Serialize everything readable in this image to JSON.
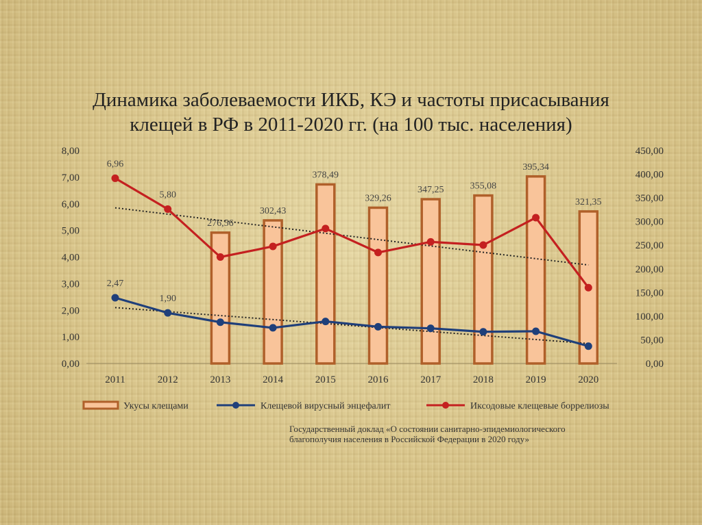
{
  "title_lines": [
    "Динамика заболеваемости ИКБ, КЭ и частоты  присасывания",
    "клещей   в РФ в 2011-2020 гг. (на 100 тыс. населения)"
  ],
  "source_note": [
    "Государственный доклад «О состоянии санитарно-эпидемиологического",
    "благополучия населения   в Российской Федерации в 2020 году»"
  ],
  "colors": {
    "bar_fill": "#f9c49a",
    "bar_stroke": "#b0602a",
    "ke_line": "#1f3f7a",
    "ikb_line": "#c42020",
    "trend": "#222222"
  },
  "chart_data": {
    "type": "bar",
    "categories": [
      "2011",
      "2012",
      "2013",
      "2014",
      "2015",
      "2016",
      "2017",
      "2018",
      "2019",
      "2020"
    ],
    "left_axis": {
      "ylim": [
        0,
        8
      ],
      "ticks": [
        "0,00",
        "1,00",
        "2,00",
        "3,00",
        "4,00",
        "5,00",
        "6,00",
        "7,00",
        "8,00"
      ]
    },
    "right_axis": {
      "ylim": [
        0,
        450
      ],
      "ticks": [
        "0,00",
        "50,00",
        "100,00",
        "150,00",
        "200,00",
        "250,00",
        "300,00",
        "350,00",
        "400,00",
        "450,00"
      ]
    },
    "series": [
      {
        "name": "Укусы клещами",
        "type": "bar",
        "axis": "right",
        "values": [
          null,
          null,
          276.56,
          302.43,
          378.49,
          329.26,
          347.25,
          355.08,
          395.34,
          321.35
        ],
        "labels": [
          "",
          "",
          "276,56",
          "302,43",
          "378,49",
          "329,26",
          "347,25",
          "355,08",
          "395,34",
          "321,35"
        ]
      },
      {
        "name": "Клещевой вирусный энцефалит",
        "type": "line",
        "axis": "left",
        "values": [
          2.47,
          1.9,
          1.55,
          1.34,
          1.58,
          1.38,
          1.32,
          1.19,
          1.21,
          0.65
        ],
        "labels": [
          "2,47",
          "1,90",
          "",
          "",
          "",
          "",
          "",
          "",
          "",
          ""
        ]
      },
      {
        "name": "Иксодовые клещевые боррелиозы",
        "type": "line",
        "axis": "left",
        "values": [
          6.96,
          5.8,
          4.0,
          4.4,
          5.07,
          4.17,
          4.57,
          4.45,
          5.48,
          2.85
        ],
        "labels": [
          "6,96",
          "5,80",
          "",
          "",
          "",
          "",
          "",
          "",
          "",
          ""
        ]
      }
    ],
    "trendlines": [
      {
        "of": "Иксодовые клещевые боррелиозы",
        "start": 5.85,
        "end": 3.7
      },
      {
        "of": "Клещевой вирусный энцефалит",
        "start": 2.1,
        "end": 0.75
      }
    ],
    "grid": false,
    "legend_position": "bottom"
  }
}
